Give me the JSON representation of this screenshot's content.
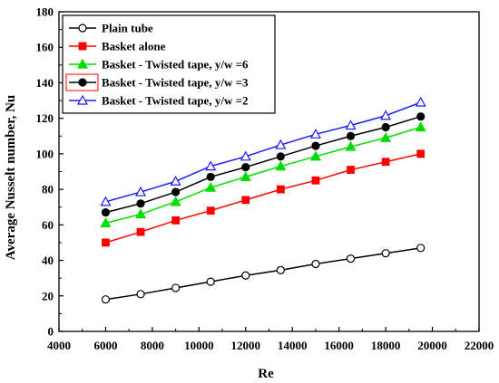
{
  "chart_data": {
    "type": "line",
    "xlabel": "Re",
    "ylabel": "Average Nusselt number, Nu",
    "xlim": [
      4000,
      22000
    ],
    "ylim": [
      0,
      180
    ],
    "xticks": [
      4000,
      6000,
      8000,
      10000,
      12000,
      14000,
      16000,
      18000,
      20000,
      22000
    ],
    "yticks": [
      0,
      20,
      40,
      60,
      80,
      100,
      120,
      140,
      160,
      180
    ],
    "legend_position": "top-left",
    "grid": false,
    "x": [
      6000,
      7500,
      9000,
      10500,
      12000,
      13500,
      15000,
      16500,
      18000,
      19500
    ],
    "series": [
      {
        "name": "Plain tube",
        "color": "#000000",
        "marker": "circle-open",
        "values": [
          18,
          21,
          24.5,
          28,
          31.5,
          34.5,
          38,
          41,
          44,
          47
        ]
      },
      {
        "name": "Basket alone",
        "color": "#ff0000",
        "marker": "square-filled",
        "values": [
          50,
          56,
          62.5,
          68,
          74,
          80,
          85,
          91,
          95.5,
          100
        ]
      },
      {
        "name": "Basket - Twisted tape, y/w =6",
        "color": "#00dd00",
        "marker": "triangle-filled",
        "values": [
          61,
          66,
          73,
          81,
          87,
          93,
          98.5,
          104,
          109,
          115
        ]
      },
      {
        "name": "Basket - Twisted tape, y/w =3",
        "color": "#000000",
        "marker": "circle-filled",
        "values": [
          67,
          72,
          78.5,
          87,
          92.5,
          98.5,
          104.5,
          110,
          115,
          121
        ]
      },
      {
        "name": "Basket - Twisted tape, y/w =2",
        "color": "#1a1aff",
        "marker": "triangle-open",
        "values": [
          73,
          78.5,
          84.5,
          93,
          98.5,
          105,
          111,
          116,
          121.5,
          129
        ]
      }
    ]
  }
}
